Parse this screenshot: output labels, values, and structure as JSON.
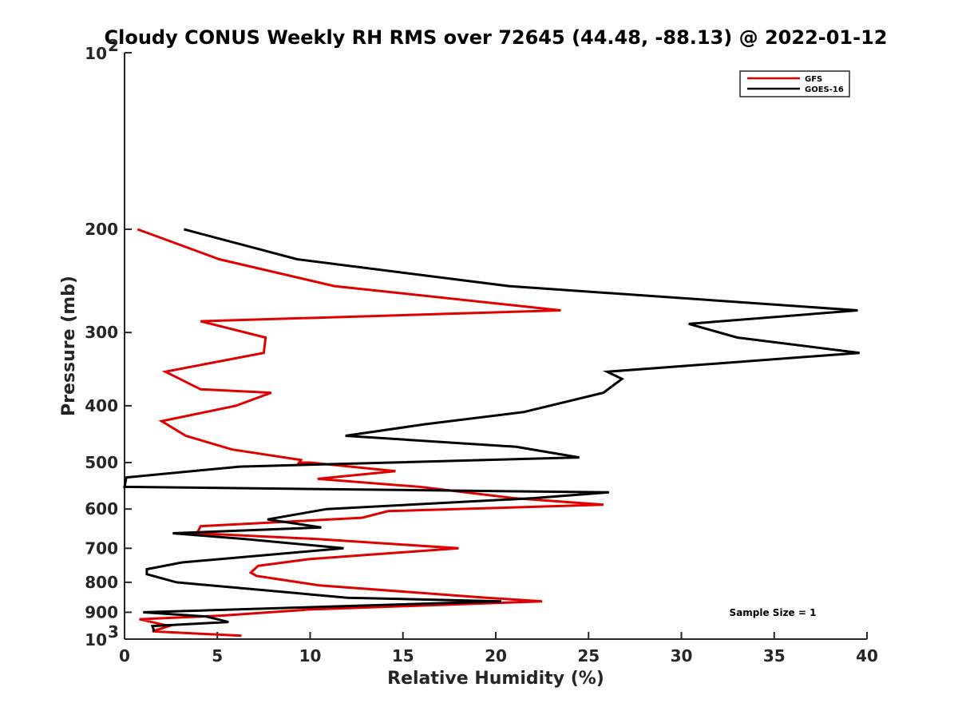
{
  "chart_data": {
    "type": "line",
    "title": "Cloudy CONUS Weekly RH RMS over 72645 (44.48, -88.13) @ 2022-01-12",
    "xlabel": "Relative Humidity (%)",
    "ylabel": "Pressure (mb)",
    "xlim": [
      0,
      40
    ],
    "ylim": [
      100,
      1000
    ],
    "y_scale": "log",
    "y_reversed": true,
    "x_ticks": [
      "0",
      "5",
      "10",
      "15",
      "20",
      "25",
      "30",
      "35",
      "40"
    ],
    "y_ticks": [
      {
        "value": 100,
        "base": "10",
        "exp": "2"
      },
      {
        "value": 200,
        "label": "200"
      },
      {
        "value": 300,
        "label": "300"
      },
      {
        "value": 400,
        "label": "400"
      },
      {
        "value": 500,
        "label": "500"
      },
      {
        "value": 600,
        "label": "600"
      },
      {
        "value": 700,
        "label": "700"
      },
      {
        "value": 800,
        "label": "800"
      },
      {
        "value": 900,
        "label": "900"
      },
      {
        "value": 1000,
        "base": "10",
        "exp": "3"
      }
    ],
    "legend_position": "top-right",
    "grid": false,
    "annotation": "Sample Size = 1",
    "series": [
      {
        "name": "GFS",
        "color": "#e00000",
        "points": [
          [
            0.7,
            200
          ],
          [
            5.1,
            225
          ],
          [
            11.3,
            250
          ],
          [
            23.5,
            275
          ],
          [
            4.1,
            287
          ],
          [
            7.6,
            306
          ],
          [
            7.5,
            325
          ],
          [
            2.2,
            350
          ],
          [
            4.1,
            375
          ],
          [
            7.9,
            380
          ],
          [
            6.0,
            400
          ],
          [
            2.0,
            425
          ],
          [
            3.3,
            450
          ],
          [
            5.8,
            475
          ],
          [
            9.5,
            495
          ],
          [
            9.4,
            500
          ],
          [
            10.0,
            500
          ],
          [
            14.6,
            517
          ],
          [
            10.4,
            533
          ],
          [
            15.9,
            550
          ],
          [
            21.0,
            575
          ],
          [
            25.8,
            590
          ],
          [
            14.2,
            605
          ],
          [
            12.8,
            621
          ],
          [
            4.1,
            642
          ],
          [
            3.9,
            660
          ],
          [
            10.4,
            675
          ],
          [
            18.0,
            700
          ],
          [
            10.0,
            730
          ],
          [
            7.2,
            750
          ],
          [
            6.8,
            770
          ],
          [
            7.1,
            780
          ],
          [
            10.5,
            810
          ],
          [
            19.5,
            850
          ],
          [
            22.5,
            862
          ],
          [
            10.0,
            890
          ],
          [
            5.2,
            912
          ],
          [
            0.8,
            925
          ],
          [
            2.4,
            950
          ],
          [
            1.5,
            970
          ],
          [
            6.3,
            987
          ]
        ]
      },
      {
        "name": "GOES-16",
        "color": "#000000",
        "points": [
          [
            3.2,
            200
          ],
          [
            9.3,
            225
          ],
          [
            20.7,
            250
          ],
          [
            39.5,
            275
          ],
          [
            30.4,
            290
          ],
          [
            33.0,
            306
          ],
          [
            39.6,
            325
          ],
          [
            26.0,
            350
          ],
          [
            26.8,
            360
          ],
          [
            25.8,
            380
          ],
          [
            21.5,
            410
          ],
          [
            16.2,
            430
          ],
          [
            11.9,
            450
          ],
          [
            21.1,
            470
          ],
          [
            24.5,
            490
          ],
          [
            6.2,
            508
          ],
          [
            0.1,
            530
          ],
          [
            0.0,
            550
          ],
          [
            26.1,
            562
          ],
          [
            22.0,
            575
          ],
          [
            10.9,
            600
          ],
          [
            7.7,
            625
          ],
          [
            10.6,
            645
          ],
          [
            2.6,
            660
          ],
          [
            6.5,
            675
          ],
          [
            11.8,
            700
          ],
          [
            3.1,
            740
          ],
          [
            1.2,
            760
          ],
          [
            1.2,
            775
          ],
          [
            2.8,
            800
          ],
          [
            12.0,
            850
          ],
          [
            20.3,
            862
          ],
          [
            1.0,
            900
          ],
          [
            4.4,
            915
          ],
          [
            5.6,
            935
          ],
          [
            1.5,
            950
          ],
          [
            1.6,
            970
          ]
        ]
      }
    ]
  },
  "legend": {
    "items": [
      {
        "label": "GFS",
        "color": "#e00000"
      },
      {
        "label": "GOES-16",
        "color": "#000000"
      }
    ]
  }
}
